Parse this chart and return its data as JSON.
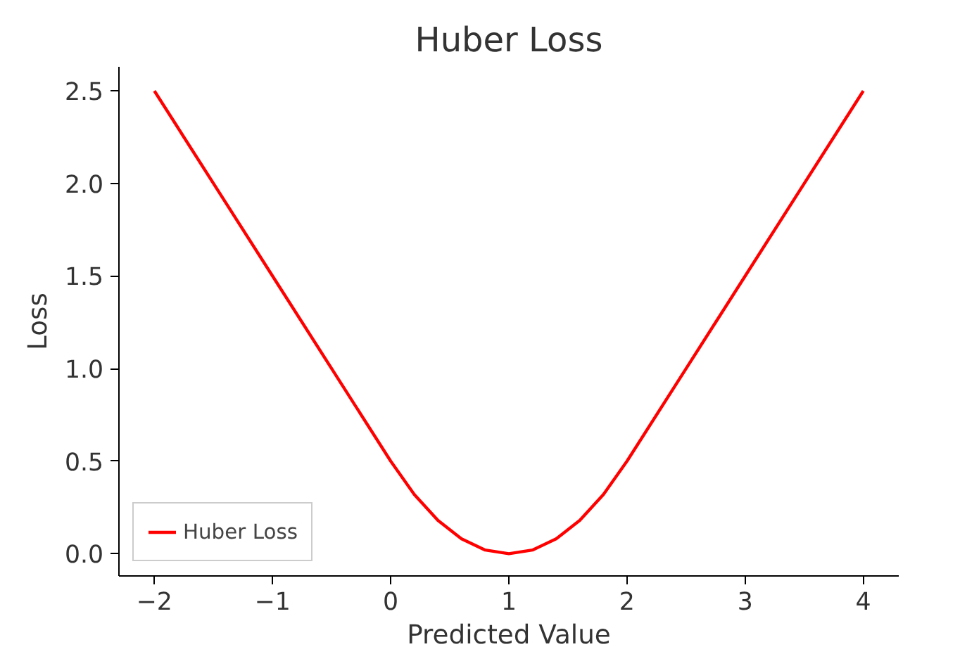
{
  "chart_data": {
    "type": "line",
    "title": "Huber Loss",
    "xlabel": "Predicted Value",
    "ylabel": "Loss",
    "x": [
      -2,
      -1.5,
      -1,
      -0.5,
      0,
      0.2,
      0.4,
      0.6,
      0.8,
      1,
      1.2,
      1.4,
      1.6,
      1.8,
      2,
      2.5,
      3,
      3.5,
      4
    ],
    "series": [
      {
        "name": "Huber Loss",
        "color": "#ff0000",
        "values": [
          2.5,
          2.0,
          1.5,
          1.0,
          0.5,
          0.32,
          0.18,
          0.08,
          0.02,
          0,
          0.02,
          0.08,
          0.18,
          0.32,
          0.5,
          1.0,
          1.5,
          2.0,
          2.5
        ]
      }
    ],
    "xlim": [
      -2.3,
      4.3
    ],
    "ylim": [
      -0.12,
      2.63
    ],
    "xticks": [
      {
        "value": -2,
        "label": "−2"
      },
      {
        "value": -1,
        "label": "−1"
      },
      0,
      1,
      2,
      3,
      4
    ],
    "yticks": [
      {
        "value": 0,
        "label": "0.0"
      },
      {
        "value": 0.5,
        "label": "0.5"
      },
      {
        "value": 1,
        "label": "1.0"
      },
      {
        "value": 1.5,
        "label": "1.5"
      },
      {
        "value": 2,
        "label": "2.0"
      },
      {
        "value": 2.5,
        "label": "2.5"
      }
    ],
    "grid": false,
    "legend": "bottom left",
    "line_style": "solid"
  }
}
